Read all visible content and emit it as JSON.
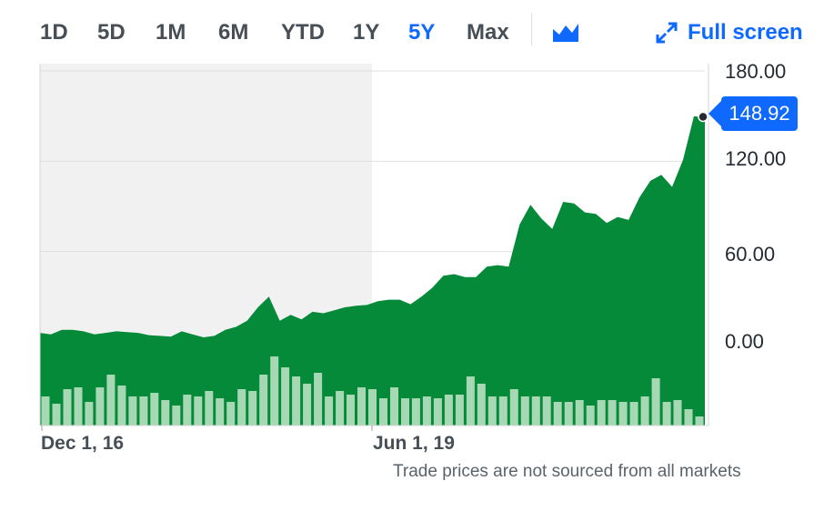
{
  "toolbar": {
    "ranges": [
      "1D",
      "5D",
      "1M",
      "6M",
      "YTD",
      "1Y",
      "5Y",
      "Max"
    ],
    "active_range": "5Y",
    "chart_type_icon": "area-chart-icon",
    "fullscreen_label": "Full screen",
    "fullscreen_icon": "expand-arrows-icon"
  },
  "price_badge": "148.92",
  "footnote": "Trade prices are not sourced from all markets",
  "colors": {
    "accent": "#0f69ff",
    "area": "#058a3a",
    "volume": "#a6d8b4",
    "highlight": "#f1f1f1"
  },
  "chart_data": {
    "type": "area",
    "title": "",
    "xlabel": "",
    "ylabel": "",
    "x_tick_labels": [
      "Dec 1, 16",
      "Jun 1, 19"
    ],
    "y_tick_labels": [
      "180.00",
      "120.00",
      "60.00",
      "0.00"
    ],
    "ylim": [
      0,
      180
    ],
    "grid": true,
    "last_value": 148.92,
    "price": [
      6.0,
      5.0,
      8.0,
      8.0,
      7.0,
      5.0,
      6.0,
      7.0,
      6.5,
      6.0,
      4.5,
      4.0,
      3.5,
      7.0,
      5.0,
      3.0,
      4.0,
      8.0,
      10.0,
      14.0,
      23.0,
      30.0,
      14.0,
      18.0,
      15.0,
      20.0,
      19.0,
      21.0,
      23.0,
      24.0,
      24.5,
      27.0,
      28.0,
      28.0,
      25.0,
      30.0,
      36.0,
      44.0,
      45.0,
      43.0,
      43.0,
      50.0,
      51.0,
      50.0,
      78.0,
      91.0,
      82.0,
      75.0,
      93.0,
      92.0,
      86.0,
      85.0,
      79.0,
      83.0,
      81.0,
      96.0,
      107.0,
      111.0,
      103.0,
      121.0,
      150.0,
      148.92
    ],
    "volume": [
      32,
      24,
      40,
      42,
      26,
      42,
      56,
      44,
      32,
      32,
      36,
      28,
      22,
      34,
      32,
      38,
      30,
      26,
      40,
      38,
      56,
      76,
      64,
      54,
      46,
      58,
      32,
      38,
      34,
      42,
      40,
      30,
      42,
      30,
      30,
      32,
      30,
      34,
      34,
      54,
      46,
      32,
      32,
      40,
      32,
      32,
      32,
      26,
      26,
      28,
      22,
      28,
      28,
      26,
      26,
      32,
      52,
      26,
      28,
      18,
      10
    ],
    "highlight_range": [
      "Dec 1, 16",
      "Jun 1, 19"
    ]
  }
}
